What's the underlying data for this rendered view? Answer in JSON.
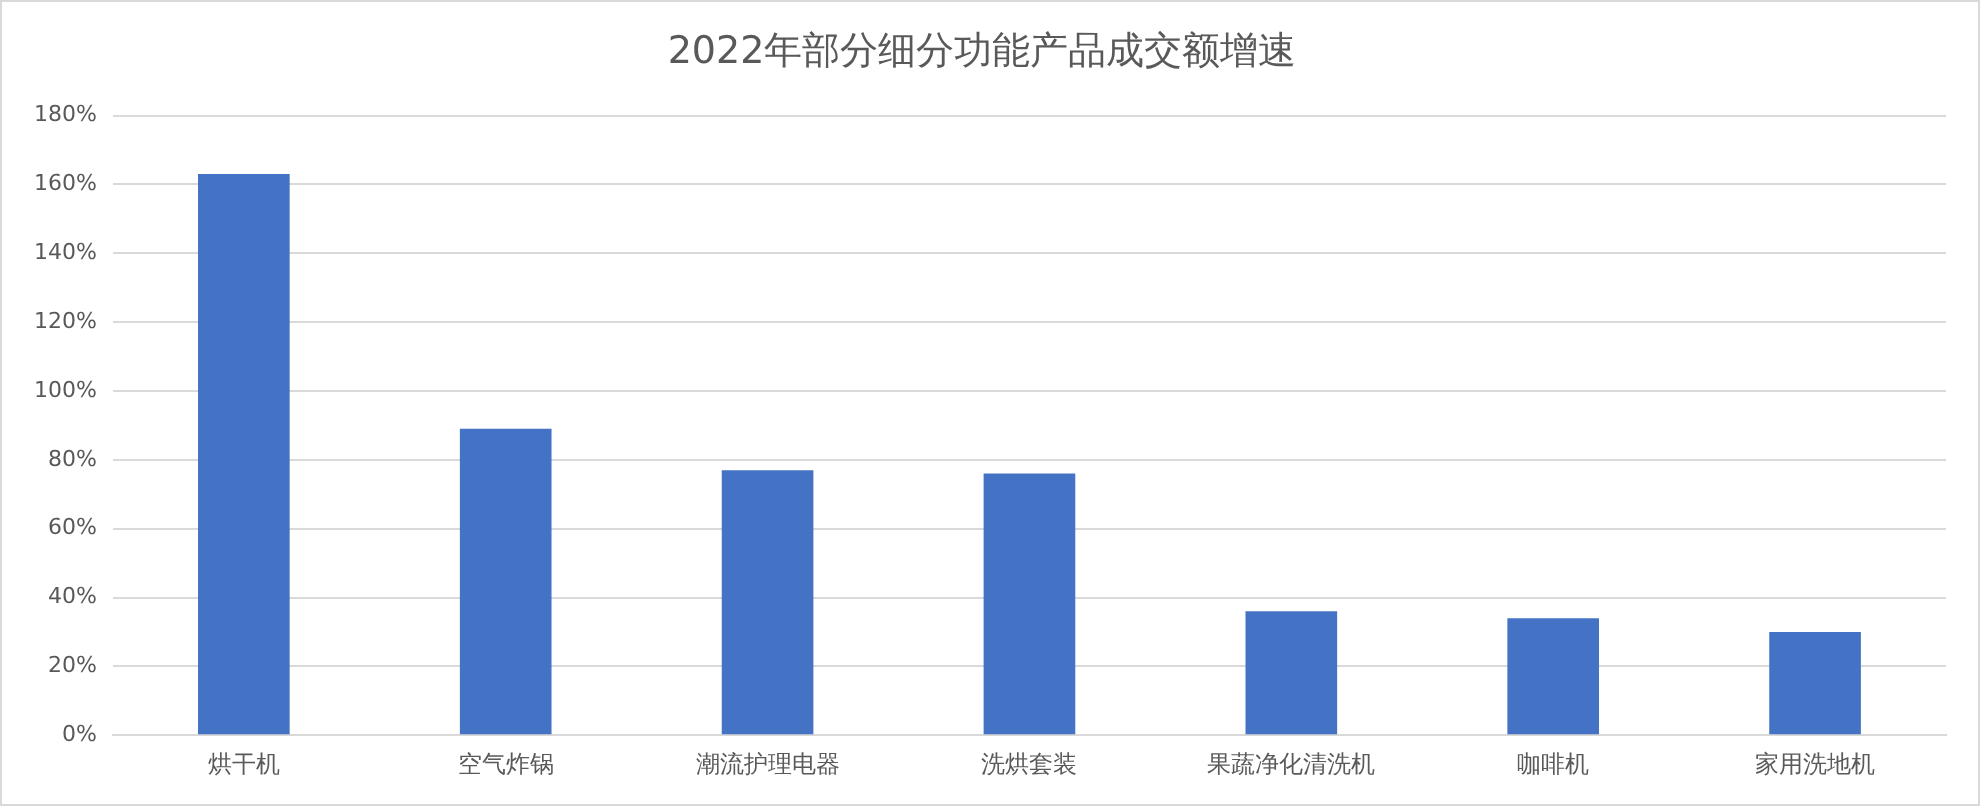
{
  "chart_data": {
    "type": "bar",
    "title": "2022年部分细分功能产品成交额增速",
    "categories": [
      "烘干机",
      "空气炸锅",
      "潮流护理电器",
      "洗烘套装",
      "果蔬净化清洗机",
      "咖啡机",
      "家用洗地机"
    ],
    "values": [
      163,
      89,
      77,
      76,
      36,
      34,
      30
    ],
    "color": "#4472c4",
    "ylim": [
      0,
      180
    ],
    "yticks": [
      {
        "value": 0,
        "label": "0%"
      },
      {
        "value": 20,
        "label": "20%"
      },
      {
        "value": 40,
        "label": "40%"
      },
      {
        "value": 60,
        "label": "60%"
      },
      {
        "value": 80,
        "label": "80%"
      },
      {
        "value": 100,
        "label": "100%"
      },
      {
        "value": 120,
        "label": "120%"
      },
      {
        "value": 140,
        "label": "140%"
      },
      {
        "value": 160,
        "label": "160%"
      },
      {
        "value": 180,
        "label": "180%"
      }
    ],
    "grid": "y"
  }
}
